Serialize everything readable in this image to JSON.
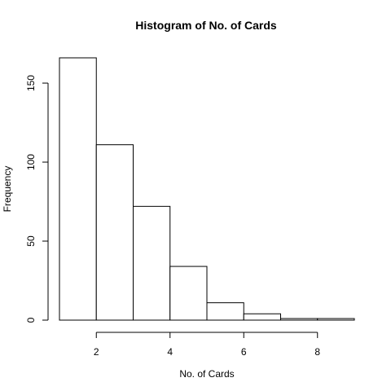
{
  "chart_data": {
    "type": "bar",
    "title": "Histogram of No. of Cards",
    "xlabel": "No. of Cards",
    "ylabel": "Frequency",
    "bins": [
      {
        "start": 1,
        "end": 2,
        "count": 166
      },
      {
        "start": 2,
        "end": 3,
        "count": 111
      },
      {
        "start": 3,
        "end": 4,
        "count": 72
      },
      {
        "start": 4,
        "end": 5,
        "count": 34
      },
      {
        "start": 5,
        "end": 6,
        "count": 11
      },
      {
        "start": 6,
        "end": 7,
        "count": 4
      },
      {
        "start": 7,
        "end": 8,
        "count": 1
      },
      {
        "start": 8,
        "end": 9,
        "count": 1
      }
    ],
    "xticks": [
      2,
      4,
      6,
      8
    ],
    "yticks": [
      0,
      50,
      100,
      150
    ],
    "xlim": [
      1,
      9
    ],
    "ylim": [
      0,
      166
    ],
    "grid": false,
    "legend": "none"
  }
}
